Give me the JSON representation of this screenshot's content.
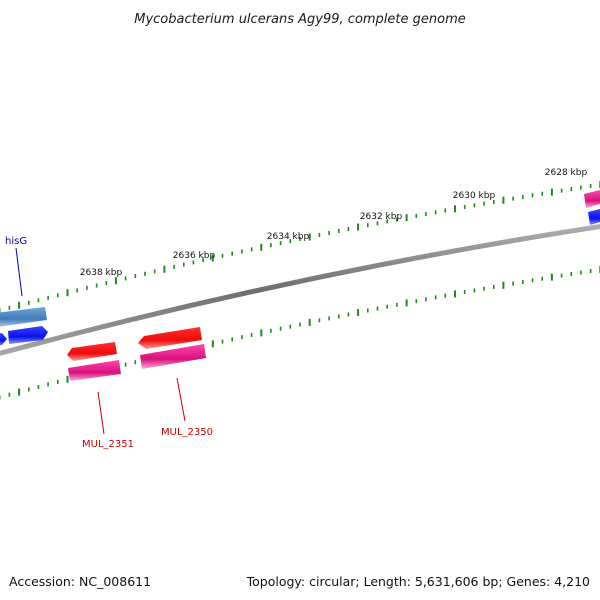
{
  "title": "Mycobacterium ulcerans Agy99, complete genome",
  "accession_text": "Accession: NC_008611",
  "summary_text": "Topology: circular; Length: 5,631,606 bp; Genes: 4,210",
  "colors": {
    "backbone": "#7a7a7a",
    "tick": "#1a8a1a",
    "forward_gene": "#0a12ee",
    "forward_gene_alt": "#4a86c0",
    "reverse_gene": "#ee1010",
    "reverse_gene_alt": "#e2188c",
    "label_forward": "#0000aa",
    "label_reverse": "#cc0000"
  },
  "tick_labels": [
    "2628 kbp",
    "2630 kbp",
    "2632 kbp",
    "2634 kbp",
    "2636 kbp",
    "2638 kbp"
  ],
  "genes": [
    {
      "id": "hisG",
      "label": "hisG",
      "strand": "forward"
    },
    {
      "id": "MUL_2351",
      "label": "MUL_2351",
      "strand": "reverse"
    },
    {
      "id": "MUL_2350",
      "label": "MUL_2350",
      "strand": "reverse"
    }
  ]
}
